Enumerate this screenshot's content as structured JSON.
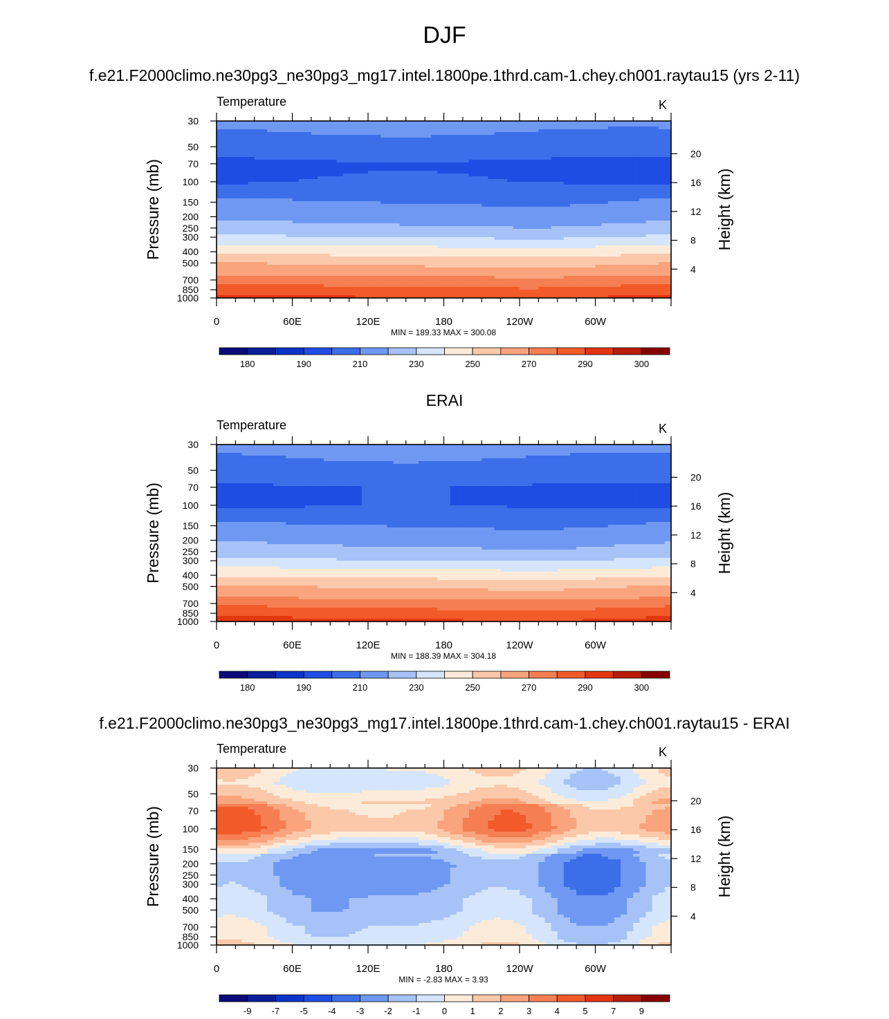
{
  "figure": {
    "title": "DJF",
    "model_case": "f.e21.F2000climo.ne30pg3_ne30pg3_mg17.intel.1800pe.1thrd.cam-1.chey.ch001.raytau15 (yrs 2-11)",
    "obs_title": "ERAI",
    "diff_title": "f.e21.F2000climo.ne30pg3_ne30pg3_mg17.intel.1800pe.1thrd.cam-1.chey.ch001.raytau15 - ERAI"
  },
  "chart_data": [
    {
      "type": "heatmap",
      "variable": "Temperature",
      "units": "K",
      "ylabel": "Pressure (mb)",
      "y2label": "Height (km)",
      "xticks": [
        "0",
        "60E",
        "120E",
        "180",
        "120W",
        "60W"
      ],
      "yticks": [
        30,
        50,
        70,
        100,
        150,
        200,
        250,
        300,
        400,
        500,
        700,
        850,
        1000
      ],
      "y2ticks": [
        20,
        16,
        12,
        8,
        4
      ],
      "ylim": [
        1000,
        30
      ],
      "stats": "MIN = 189.33  MAX = 300.08",
      "min": 189.33,
      "max": 300.08,
      "colorbar_levels": [
        175,
        180,
        185,
        190,
        200,
        210,
        220,
        230,
        240,
        250,
        260,
        270,
        280,
        290,
        295,
        300
      ],
      "colorbar_labels": [
        "180",
        "190",
        "210",
        "230",
        "250",
        "270",
        "290",
        "300"
      ],
      "profile": [
        [
          1000,
          291
        ],
        [
          925,
          288
        ],
        [
          850,
          283
        ],
        [
          700,
          275
        ],
        [
          600,
          265
        ],
        [
          500,
          258
        ],
        [
          400,
          246
        ],
        [
          300,
          230
        ],
        [
          250,
          222
        ],
        [
          200,
          216
        ],
        [
          150,
          210
        ],
        [
          100,
          200
        ],
        [
          70,
          198
        ],
        [
          50,
          206
        ],
        [
          30,
          213
        ]
      ]
    },
    {
      "type": "heatmap",
      "variable": "Temperature",
      "units": "K",
      "ylabel": "Pressure (mb)",
      "y2label": "Height (km)",
      "xticks": [
        "0",
        "60E",
        "120E",
        "180",
        "120W",
        "60W"
      ],
      "yticks": [
        30,
        50,
        70,
        100,
        150,
        200,
        250,
        300,
        400,
        500,
        700,
        850,
        1000
      ],
      "y2ticks": [
        20,
        16,
        12,
        8,
        4
      ],
      "ylim": [
        1000,
        30
      ],
      "stats": "MIN = 188.39  MAX = 304.18",
      "min": 188.39,
      "max": 304.18,
      "colorbar_levels": [
        175,
        180,
        185,
        190,
        200,
        210,
        220,
        230,
        240,
        250,
        260,
        270,
        280,
        290,
        295,
        300
      ],
      "colorbar_labels": [
        "180",
        "190",
        "210",
        "230",
        "250",
        "270",
        "290",
        "300"
      ],
      "profile": [
        [
          1000,
          292
        ],
        [
          925,
          289
        ],
        [
          850,
          284
        ],
        [
          700,
          276
        ],
        [
          600,
          266
        ],
        [
          500,
          259
        ],
        [
          400,
          247
        ],
        [
          300,
          231
        ],
        [
          250,
          223
        ],
        [
          200,
          217
        ],
        [
          150,
          210
        ],
        [
          100,
          199
        ],
        [
          70,
          199
        ],
        [
          50,
          207
        ],
        [
          30,
          213
        ]
      ]
    },
    {
      "type": "heatmap",
      "variable": "Temperature",
      "units": "K",
      "ylabel": "Pressure (mb)",
      "y2label": "Height (km)",
      "xticks": [
        "0",
        "60E",
        "120E",
        "180",
        "120W",
        "60W"
      ],
      "yticks": [
        30,
        50,
        70,
        100,
        150,
        200,
        250,
        300,
        400,
        500,
        700,
        850,
        1000
      ],
      "y2ticks": [
        20,
        16,
        12,
        8,
        4
      ],
      "ylim": [
        1000,
        30
      ],
      "stats": "MIN =  -2.83  MAX =   3.93",
      "min": -2.83,
      "max": 3.93,
      "colorbar_levels": [
        -10,
        -9,
        -7,
        -5,
        -4,
        -3,
        -2,
        -1,
        0,
        1,
        2,
        3,
        4,
        5,
        7,
        9
      ],
      "colorbar_labels": [
        "-9",
        "-7",
        "-5",
        "-4",
        "-3",
        "-2",
        "-1",
        "0",
        "1",
        "2",
        "3",
        "4",
        "5",
        "7",
        "9"
      ],
      "profile": [
        [
          1000,
          0.3
        ],
        [
          850,
          -0.5
        ],
        [
          700,
          -0.6
        ],
        [
          500,
          -1.5
        ],
        [
          400,
          -1.5
        ],
        [
          300,
          -2.2
        ],
        [
          200,
          -2.3
        ],
        [
          150,
          -1.2
        ],
        [
          130,
          0.5
        ],
        [
          100,
          2.6
        ],
        [
          70,
          2.2
        ],
        [
          50,
          0.6
        ],
        [
          40,
          -0.3
        ],
        [
          30,
          0.4
        ]
      ]
    }
  ],
  "colors": {
    "palette": [
      "#0a0a78",
      "#0b1e9a",
      "#0c34c8",
      "#1f4de3",
      "#3c6ee9",
      "#6f98f2",
      "#a6c2f7",
      "#d5e5fb",
      "#fdebd9",
      "#fcc8aa",
      "#f9a47c",
      "#f57f52",
      "#f25a2a",
      "#e23610",
      "#b91c06",
      "#850000"
    ]
  }
}
